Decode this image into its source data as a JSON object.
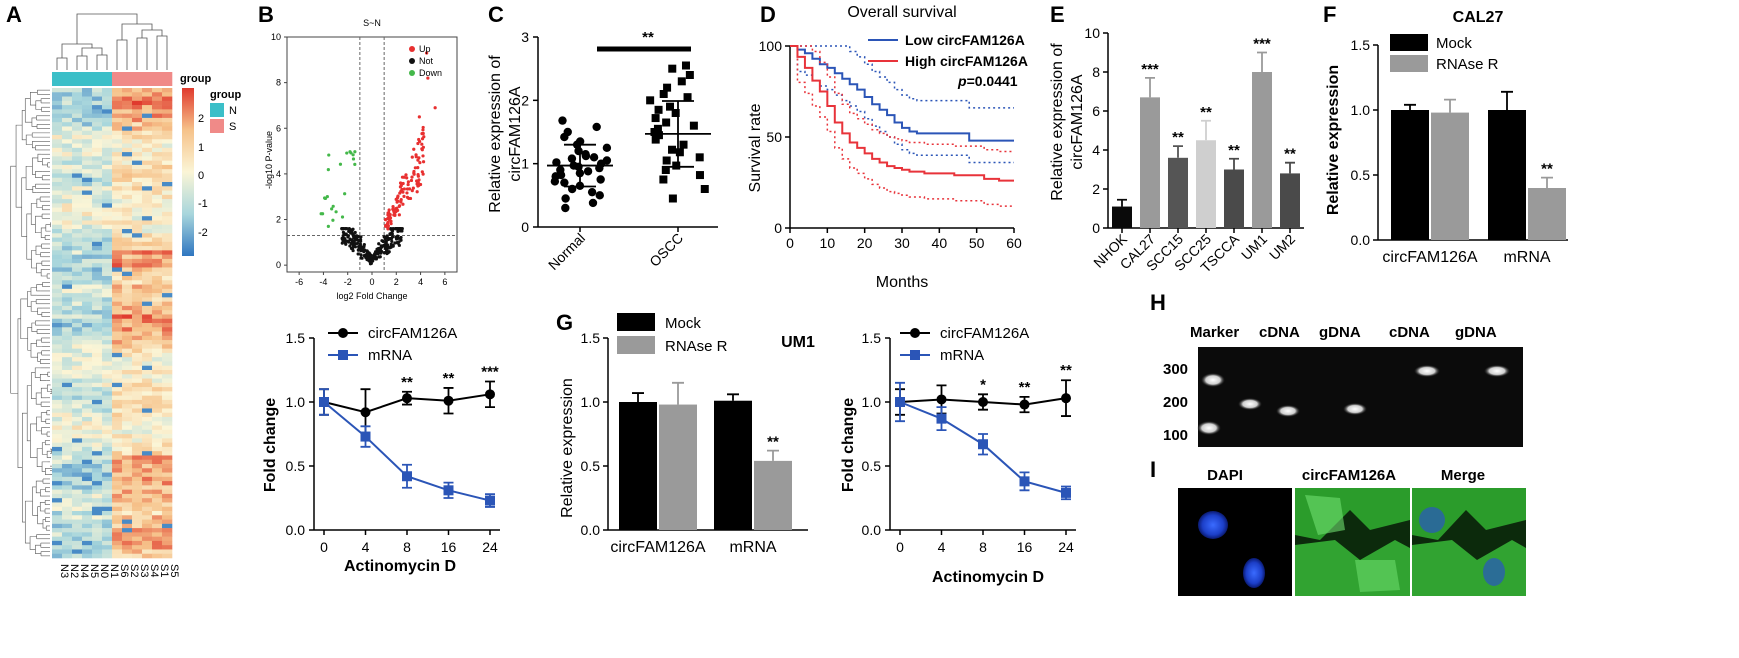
{
  "panel_labels": {
    "A": "A",
    "B": "B",
    "C": "C",
    "D": "D",
    "E": "E",
    "F": "F",
    "G": "G",
    "H": "H",
    "I": "I"
  },
  "colors": {
    "black": "#000000",
    "grey": "#9a9a9a",
    "blue": "#2b55b7",
    "red": "#e8333a",
    "hm_low": "#3a7dc4",
    "hm_mid": "#fbf5d6",
    "hm_high": "#e8463a",
    "group_N": "#3bbfc8",
    "group_S": "#f08a88",
    "up": "#e83030",
    "not": "#111111",
    "down": "#44b84a"
  },
  "chart_data": [
    {
      "id": "A",
      "type": "heatmap",
      "columns": [
        "N3",
        "N2",
        "N4",
        "N5",
        "N0",
        "N1",
        "S6",
        "S2",
        "S3",
        "S4",
        "S1",
        "S5"
      ],
      "groups": [
        "N",
        "N",
        "N",
        "N",
        "N",
        "N",
        "S",
        "S",
        "S",
        "S",
        "S",
        "S"
      ],
      "legend_title": "group",
      "group_legend": [
        "N",
        "S"
      ],
      "scale_ticks": [
        "2",
        "1",
        "0",
        "-1",
        "-2"
      ],
      "scale_range": [
        -2.8,
        2.8
      ],
      "group_bar_label": "group"
    },
    {
      "id": "B-volcano",
      "type": "scatter",
      "title": "S~N",
      "xlabel": "log2 Fold Change",
      "ylabel": "-log10 P-value",
      "xlim": [
        -7,
        7
      ],
      "ylim": [
        -0.3,
        10
      ],
      "xticks": [
        "-6",
        "-4",
        "-2",
        "0",
        "2",
        "4",
        "6"
      ],
      "yticks": [
        "0",
        "2",
        "4",
        "6",
        "8",
        "10"
      ],
      "vlines": [
        -1,
        1
      ],
      "hline": 1.3,
      "legend": [
        "Up",
        "Not",
        "Down"
      ],
      "counts": {
        "up": 115,
        "not": 260,
        "down": 22
      }
    },
    {
      "id": "B-decay",
      "type": "line",
      "xlabel": "Actinomycin D",
      "ylabel": "Fold change",
      "categories": [
        "0",
        "4",
        "8",
        "16",
        "24"
      ],
      "ylim": [
        0,
        1.5
      ],
      "yticks": [
        "0.0",
        "0.5",
        "1.0",
        "1.5"
      ],
      "series": [
        {
          "name": "circFAM126A",
          "values": [
            1.0,
            0.92,
            1.03,
            1.01,
            1.06
          ],
          "err": [
            0.1,
            0.18,
            0.05,
            0.1,
            0.1
          ]
        },
        {
          "name": "mRNA",
          "values": [
            1.0,
            0.73,
            0.42,
            0.31,
            0.23
          ],
          "err": [
            0.1,
            0.08,
            0.09,
            0.06,
            0.05
          ]
        }
      ],
      "significance": [
        "",
        "",
        "**",
        "**",
        "***"
      ]
    },
    {
      "id": "C",
      "type": "scatter",
      "ylabel": "Relative expression of circFAM126A",
      "categories": [
        "Normal",
        "OSCC"
      ],
      "ylim": [
        0,
        3
      ],
      "yticks": [
        "0",
        "1",
        "2",
        "3"
      ],
      "means": [
        0.97,
        1.47
      ],
      "sd": [
        0.33,
        0.52
      ],
      "points": [
        [
          0.3,
          0.38,
          0.45,
          0.5,
          0.55,
          0.6,
          0.65,
          0.7,
          0.72,
          0.75,
          0.8,
          0.82,
          0.85,
          0.88,
          0.9,
          0.93,
          0.95,
          0.97,
          1.0,
          1.02,
          1.05,
          1.08,
          1.1,
          1.12,
          1.15,
          1.2,
          1.25,
          1.3,
          1.35,
          1.42,
          1.5,
          1.58,
          1.68
        ],
        [
          0.45,
          0.6,
          0.75,
          0.82,
          0.9,
          0.97,
          1.05,
          1.1,
          1.18,
          1.22,
          1.3,
          1.38,
          1.45,
          1.5,
          1.55,
          1.6,
          1.65,
          1.72,
          1.8,
          1.85,
          1.9,
          2.0,
          2.05,
          2.1,
          2.2,
          2.3,
          2.4,
          2.5,
          2.55
        ]
      ],
      "significance": "**"
    },
    {
      "id": "D",
      "type": "line",
      "title": "Overall survival",
      "xlabel": "Months",
      "ylabel": "Survival rate",
      "xlim": [
        0,
        60
      ],
      "ylim": [
        0,
        100
      ],
      "xticks": [
        "0",
        "10",
        "20",
        "30",
        "40",
        "50",
        "60"
      ],
      "yticks": [
        "0",
        "50",
        "100"
      ],
      "series": [
        {
          "name": "Low circFAM126A",
          "x": [
            0,
            2,
            4,
            6,
            8,
            10,
            12,
            14,
            16,
            18,
            20,
            22,
            24,
            26,
            28,
            30,
            32,
            34,
            36,
            40,
            44,
            48,
            60
          ],
          "values": [
            100,
            98,
            96,
            93,
            90,
            88,
            85,
            82,
            79,
            76,
            72,
            68,
            65,
            62,
            58,
            55,
            53,
            52,
            52,
            52,
            52,
            48,
            48
          ]
        },
        {
          "name": "High circFAM126A",
          "x": [
            0,
            2,
            4,
            6,
            8,
            10,
            12,
            14,
            16,
            18,
            20,
            22,
            24,
            26,
            28,
            30,
            32,
            36,
            40,
            44,
            48,
            52,
            56,
            60
          ],
          "values": [
            100,
            94,
            88,
            81,
            75,
            67,
            58,
            52,
            47,
            44,
            41,
            38,
            36,
            34,
            33,
            32,
            31,
            30,
            30,
            29,
            29,
            27,
            26,
            26
          ]
        }
      ],
      "p_label": "p",
      "p_value": "=0.0441"
    },
    {
      "id": "E",
      "type": "bar",
      "ylabel": "Relative expression of circFAM126A",
      "categories": [
        "NHOK",
        "CAL27",
        "SCC15",
        "SCC25",
        "TSCCA",
        "UM1",
        "UM2"
      ],
      "values": [
        1.1,
        6.7,
        3.6,
        4.5,
        3.0,
        8.0,
        2.8
      ],
      "err": [
        0.35,
        1.0,
        0.6,
        1.0,
        0.55,
        1.0,
        0.55
      ],
      "bar_colors": [
        "#0a0a0a",
        "#9a9a9a",
        "#555555",
        "#cfcfcf",
        "#4a4a4a",
        "#9a9a9a",
        "#4a4a4a"
      ],
      "ylim": [
        0,
        10
      ],
      "yticks": [
        "0",
        "2",
        "4",
        "6",
        "8",
        "10"
      ],
      "significance": [
        "",
        "***",
        "**",
        "**",
        "**",
        "***",
        "**"
      ]
    },
    {
      "id": "F",
      "type": "bar",
      "title": "CAL27",
      "ylabel": "Relative expression",
      "categories": [
        "circFAM126A",
        "mRNA"
      ],
      "series": [
        {
          "name": "Mock",
          "values": [
            1.0,
            1.0
          ],
          "err": [
            0.04,
            0.14
          ]
        },
        {
          "name": "RNAse R",
          "values": [
            0.98,
            0.4
          ],
          "err": [
            0.1,
            0.08
          ]
        }
      ],
      "ylim": [
        0,
        1.5
      ],
      "yticks": [
        "0.0",
        "0.5",
        "1.0",
        "1.5"
      ],
      "significance": [
        "",
        "**"
      ]
    },
    {
      "id": "G-bar",
      "type": "bar",
      "title": "UM1",
      "ylabel": "Relative expression",
      "categories": [
        "circFAM126A",
        "mRNA"
      ],
      "series": [
        {
          "name": "Mock",
          "values": [
            1.0,
            1.01
          ],
          "err": [
            0.07,
            0.05
          ]
        },
        {
          "name": "RNAse R",
          "values": [
            0.98,
            0.54
          ],
          "err": [
            0.17,
            0.08
          ]
        }
      ],
      "ylim": [
        0,
        1.5
      ],
      "yticks": [
        "0.0",
        "0.5",
        "1.0",
        "1.5"
      ],
      "significance": [
        "",
        "**"
      ]
    },
    {
      "id": "G-decay",
      "type": "line",
      "xlabel": "Actinomycin  D",
      "ylabel": "Fold change",
      "categories": [
        "0",
        "4",
        "8",
        "16",
        "24"
      ],
      "ylim": [
        0,
        1.5
      ],
      "yticks": [
        "0.0",
        "0.5",
        "1.0",
        "1.5"
      ],
      "series": [
        {
          "name": "circFAM126A",
          "values": [
            1.0,
            1.02,
            1.0,
            0.98,
            1.03
          ],
          "err": [
            0.1,
            0.11,
            0.06,
            0.06,
            0.14
          ]
        },
        {
          "name": "mRNA",
          "values": [
            1.0,
            0.87,
            0.67,
            0.38,
            0.29
          ],
          "err": [
            0.15,
            0.09,
            0.08,
            0.07,
            0.05
          ]
        }
      ],
      "significance": [
        "",
        "",
        "*",
        "**",
        "**"
      ]
    }
  ],
  "gel": {
    "lane_labels": [
      "Marker",
      "cDNA",
      "gDNA",
      "cDNA",
      "gDNA"
    ],
    "markers": [
      "300",
      "200",
      "100"
    ]
  },
  "imaging": {
    "titles": [
      "DAPI",
      "circFAM126A",
      "Merge"
    ]
  }
}
